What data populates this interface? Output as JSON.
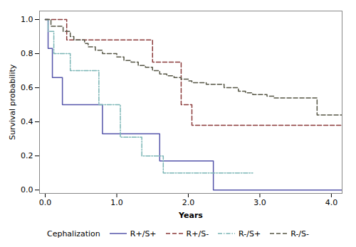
{
  "chart_data": {
    "type": "step",
    "xlabel": "Years",
    "ylabel": "Survival probability",
    "xlim": [
      -0.08,
      4.15
    ],
    "ylim": [
      -0.02,
      1.05
    ],
    "xticks": [
      0,
      1,
      2,
      3,
      4
    ],
    "yticks": [
      0.0,
      0.2,
      0.4,
      0.6,
      0.8,
      1.0
    ],
    "legend": "bottom",
    "legend_title": "Cephalization",
    "series": [
      {
        "name": "R+/S+",
        "color": "#5555aa",
        "line_style": "solid",
        "x": [
          0,
          0.04,
          0.07,
          0.1,
          0.13,
          0.17,
          0.2,
          0.24,
          0.28,
          0.35,
          0.42,
          0.5,
          0.6,
          0.7,
          0.8,
          0.9,
          1.0,
          1.5,
          1.6,
          1.7,
          1.8,
          1.9,
          2.0,
          2.35,
          4.15
        ],
        "values": [
          1.0,
          0.83,
          0.83,
          0.66,
          0.66,
          0.66,
          0.66,
          0.5,
          0.5,
          0.5,
          0.5,
          0.5,
          0.5,
          0.5,
          0.33,
          0.33,
          0.33,
          0.33,
          0.17,
          0.17,
          0.17,
          0.17,
          0.17,
          0.0,
          0.0
        ]
      },
      {
        "name": "R+/S-",
        "color": "#8b3a3a",
        "line_style": "dashed",
        "x": [
          0,
          0.04,
          0.07,
          0.1,
          0.15,
          0.22,
          0.3,
          0.35,
          0.4,
          0.45,
          0.5,
          0.55,
          0.6,
          0.65,
          0.7,
          0.75,
          0.8,
          0.85,
          0.9,
          0.95,
          1.0,
          1.05,
          1.1,
          1.15,
          1.2,
          1.3,
          1.5,
          1.6,
          1.7,
          1.8,
          1.9,
          2.05,
          2.15,
          2.2,
          4.15
        ],
        "values": [
          1.0,
          1.0,
          1.0,
          1.0,
          1.0,
          1.0,
          0.88,
          0.88,
          0.88,
          0.88,
          0.88,
          0.88,
          0.88,
          0.88,
          0.88,
          0.88,
          0.88,
          0.88,
          0.88,
          0.88,
          0.88,
          0.88,
          0.88,
          0.88,
          0.88,
          0.88,
          0.75,
          0.75,
          0.75,
          0.75,
          0.5,
          0.38,
          0.38,
          0.38,
          0.38
        ]
      },
      {
        "name": "R-/S+",
        "color": "#7ab5b5",
        "line_style": "dashdot",
        "x": [
          0,
          0.04,
          0.08,
          0.12,
          0.16,
          0.22,
          0.28,
          0.35,
          0.42,
          0.5,
          0.55,
          0.6,
          0.68,
          0.75,
          0.82,
          0.88,
          0.92,
          1.0,
          1.05,
          1.1,
          1.15,
          1.2,
          1.35,
          1.5,
          1.65,
          1.8,
          2.0,
          2.1,
          2.2,
          2.35,
          2.9
        ],
        "values": [
          1.0,
          0.93,
          0.93,
          0.8,
          0.8,
          0.8,
          0.8,
          0.7,
          0.7,
          0.7,
          0.7,
          0.7,
          0.7,
          0.5,
          0.5,
          0.5,
          0.5,
          0.5,
          0.31,
          0.31,
          0.31,
          0.31,
          0.2,
          0.2,
          0.1,
          0.1,
          0.1,
          0.1,
          0.1,
          0.1,
          0.1
        ]
      },
      {
        "name": "R-/S-",
        "color": "#555544",
        "line_style": "dashed",
        "x": [
          0,
          0.04,
          0.08,
          0.12,
          0.16,
          0.2,
          0.25,
          0.3,
          0.35,
          0.4,
          0.45,
          0.5,
          0.55,
          0.6,
          0.65,
          0.7,
          0.75,
          0.8,
          0.85,
          0.9,
          0.95,
          1.0,
          1.05,
          1.1,
          1.15,
          1.2,
          1.25,
          1.3,
          1.35,
          1.4,
          1.45,
          1.5,
          1.55,
          1.6,
          1.65,
          1.7,
          1.75,
          1.8,
          1.85,
          1.9,
          1.95,
          2.0,
          2.05,
          2.15,
          2.25,
          2.35,
          2.5,
          2.6,
          2.7,
          2.8,
          2.9,
          3.0,
          3.1,
          3.2,
          3.4,
          3.6,
          3.8,
          4.0,
          4.15
        ],
        "values": [
          1.0,
          1.0,
          0.96,
          0.96,
          0.96,
          0.96,
          0.93,
          0.93,
          0.9,
          0.88,
          0.88,
          0.88,
          0.86,
          0.84,
          0.84,
          0.82,
          0.82,
          0.8,
          0.8,
          0.8,
          0.8,
          0.78,
          0.78,
          0.76,
          0.76,
          0.75,
          0.75,
          0.73,
          0.73,
          0.72,
          0.72,
          0.7,
          0.7,
          0.68,
          0.68,
          0.67,
          0.67,
          0.66,
          0.66,
          0.65,
          0.65,
          0.64,
          0.63,
          0.63,
          0.62,
          0.62,
          0.6,
          0.6,
          0.58,
          0.57,
          0.56,
          0.56,
          0.55,
          0.54,
          0.54,
          0.54,
          0.44,
          0.44,
          0.44
        ]
      }
    ]
  }
}
